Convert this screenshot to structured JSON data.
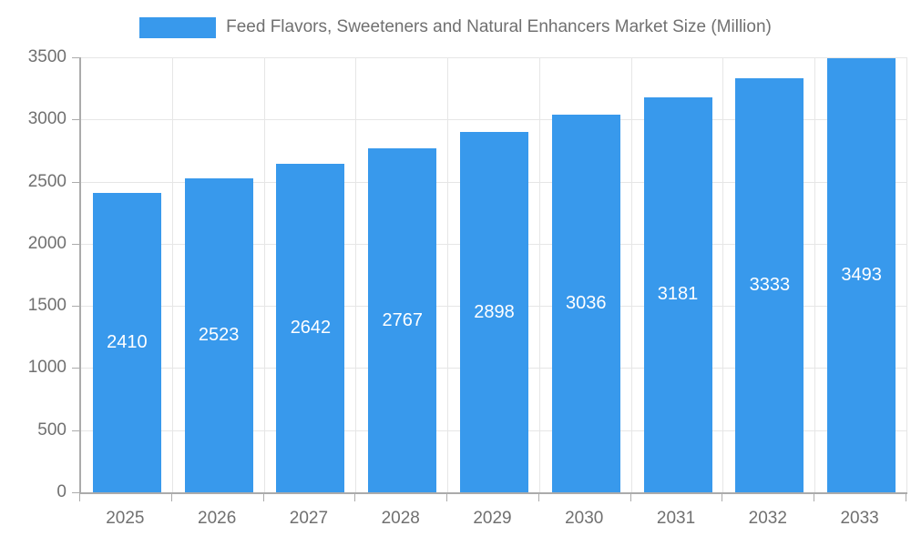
{
  "chart_data": {
    "type": "bar",
    "title": "Feed Flavors, Sweeteners and Natural Enhancers Market Size (Million)",
    "categories": [
      "2025",
      "2026",
      "2027",
      "2028",
      "2029",
      "2030",
      "2031",
      "2032",
      "2033"
    ],
    "values": [
      2410,
      2523,
      2642,
      2767,
      2898,
      3036,
      3181,
      3333,
      3493
    ],
    "xlabel": "",
    "ylabel": "",
    "ylim": [
      0,
      3500
    ],
    "y_ticks": [
      0,
      500,
      1000,
      1500,
      2000,
      2500,
      3000,
      3500
    ],
    "grid": true,
    "legend_position": "top",
    "colors": {
      "bar": "#3899EC",
      "bar_label": "#FFFFFF",
      "axis_text": "#707070",
      "grid_line": "#E6E6E6",
      "axis_line": "#ABABAB",
      "background": "#FFFFFF"
    }
  }
}
